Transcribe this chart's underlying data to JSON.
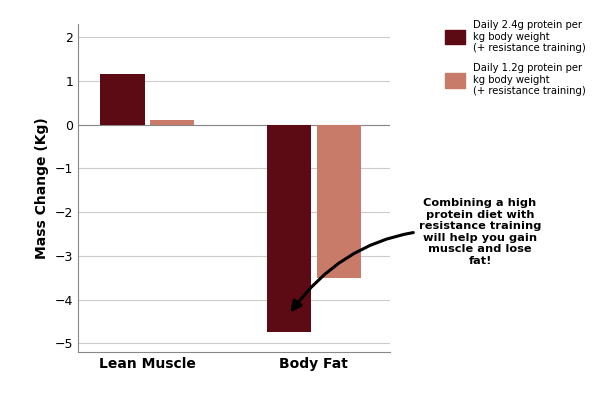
{
  "categories": [
    "Lean Muscle",
    "Body Fat"
  ],
  "high_protein": [
    1.15,
    -4.75
  ],
  "low_protein": [
    0.1,
    -3.5
  ],
  "high_protein_color": "#5C0A14",
  "low_protein_color": "#C97B6A",
  "ylabel": "Mass Change (Kg)",
  "ylim": [
    -5.2,
    2.3
  ],
  "yticks": [
    -5,
    -4,
    -3,
    -2,
    -1,
    0,
    1,
    2
  ],
  "legend_high": "Daily 2.4g protein per\nkg body weight\n(+ resistance training)",
  "legend_low": "Daily 1.2g protein per\nkg body weight\n(+ resistance training)",
  "annotation_text": "Combining a high\nprotein diet with\nresistance training\nwill help you gain\nmuscle and lose\nfat!",
  "bar_width": 0.32,
  "background_color": "#FFFFFF"
}
